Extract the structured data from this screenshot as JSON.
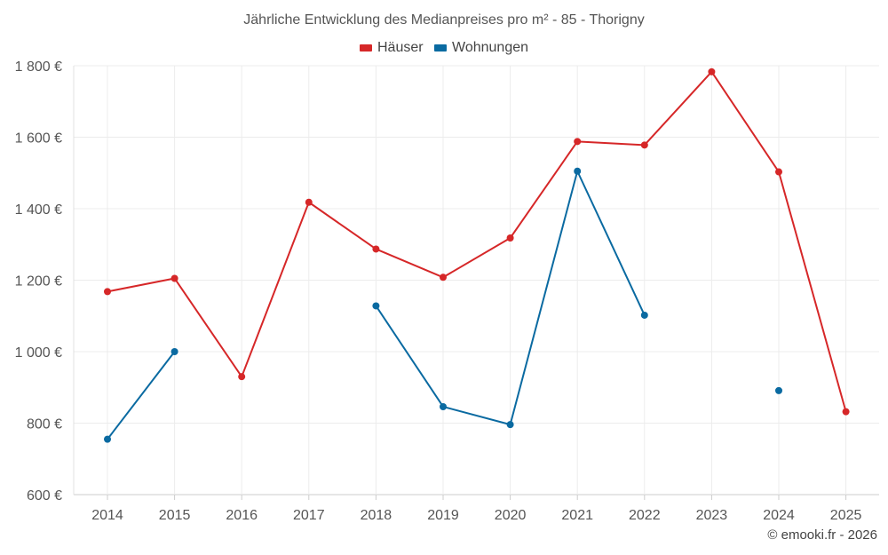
{
  "chart_data": {
    "type": "line",
    "title": "Jährliche Entwicklung des Medianpreises pro m² - 85 - Thorigny",
    "categories": [
      "2014",
      "2015",
      "2016",
      "2017",
      "2018",
      "2019",
      "2020",
      "2021",
      "2022",
      "2023",
      "2024",
      "2025"
    ],
    "series": [
      {
        "name": "Häuser",
        "color": "#d62728",
        "values": [
          1168,
          1205,
          930,
          1418,
          1287,
          1208,
          1318,
          1588,
          1578,
          1783,
          1503,
          832
        ]
      },
      {
        "name": "Wohnungen",
        "color": "#0a6aa1",
        "values": [
          755,
          1000,
          null,
          null,
          1128,
          846,
          796,
          1505,
          1102,
          null,
          891,
          null
        ]
      }
    ],
    "ylim": [
      600,
      1800
    ],
    "yticks": [
      600,
      800,
      1000,
      1200,
      1400,
      1600,
      1800
    ],
    "ytick_labels": [
      "600 €",
      "800 €",
      "1 000 €",
      "1 200 €",
      "1 400 €",
      "1 600 €",
      "1 800 €"
    ],
    "xlabel": "",
    "ylabel": "",
    "legend_position": "top-center",
    "grid": true
  },
  "credit": "© emooki.fr - 2026"
}
